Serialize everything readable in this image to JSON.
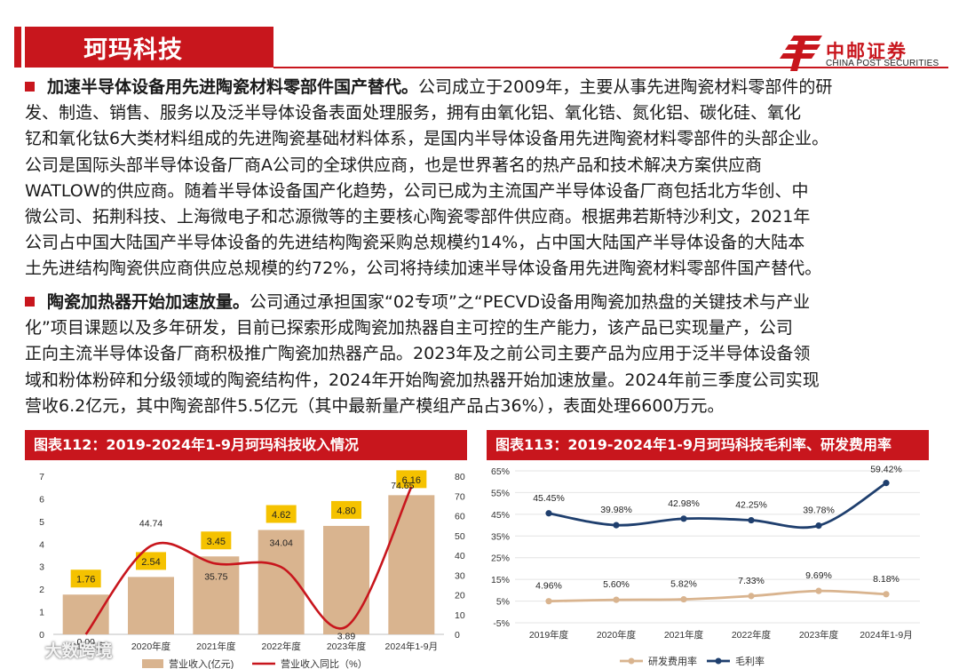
{
  "header": {
    "title": "珂玛科技",
    "logo_cn": "中邮证券",
    "logo_en": "CHINA POST SECURITIES",
    "brand_color": "#c8161d"
  },
  "sections": [
    {
      "heading": "加速半导体设备用先进陶瓷材料零部件国产替代。",
      "lines": [
        "公司成立于2009年，主要从事先进陶瓷材料零部件的研",
        "发、制造、销售、服务以及泛半导体设备表面处理服务，拥有由氧化铝、氧化锆、氮化铝、碳化硅、氧化",
        "钇和氧化钛6大类材料组成的先进陶瓷基础材料体系，是国内半导体设备用先进陶瓷材料零部件的头部企业。",
        "公司是国际头部半导体设备厂商A公司的全球供应商，也是世界著名的热产品和技术解决方案供应商",
        "WATLOW的供应商。随着半导体设备国产化趋势，公司已成为主流国产半导体设备厂商包括北方华创、中",
        "微公司、拓荆科技、上海微电子和芯源微等的主要核心陶瓷零部件供应商。根据弗若斯特沙利文，2021年",
        "公司占中国大陆国产半导体设备的先进结构陶瓷采购总规模约14%，占中国大陆国产半导体设备的大陆本",
        "土先进结构陶瓷供应商供应总规模的约72%，公司将持续加速半导体设备用先进陶瓷材料零部件国产替代。"
      ]
    },
    {
      "heading": "陶瓷加热器开始加速放量。",
      "lines": [
        "公司通过承担国家“02专项”之“PECVD设备用陶瓷加热盘的关键技术与产业",
        "化”项目课题以及多年研发，目前已探索形成陶瓷加热器自主可控的生产能力，该产品已实现量产，公司",
        "正向主流半导体设备厂商积极推广陶瓷加热器产品。2023年及之前公司主要产品为应用于泛半导体设备领",
        "域和粉体粉碎和分级领域的陶瓷结构件，2024年开始陶瓷加热器开始加速放量。2024年前三季度公司实现",
        "营收6.2亿元，其中陶瓷部件5.5亿元（其中最新量产模组产品占36%），表面处理6600万元。"
      ]
    }
  ],
  "chart_data": [
    {
      "caption": "图表112：2019-2024年1-9月珂玛科技收入情况",
      "type": "bar",
      "categories": [
        "2019年度",
        "2020年度",
        "2021年度",
        "2022年度",
        "2023年度",
        "2024年1-9月"
      ],
      "series": [
        {
          "name": "营业收入(亿元)",
          "type": "bar",
          "axis": "left",
          "values": [
            1.76,
            2.54,
            3.45,
            4.62,
            4.8,
            6.16
          ],
          "color": "#d9b48f"
        },
        {
          "name": "营业收入同比（%）",
          "type": "line",
          "axis": "right",
          "values": [
            0.0,
            44.74,
            35.75,
            34.04,
            3.89,
            74.65
          ],
          "color": "#c8161d"
        }
      ],
      "ylim_left": [
        0,
        7
      ],
      "left_ticks": [
        "0",
        "1",
        "2",
        "3",
        "4",
        "5",
        "6",
        "7"
      ],
      "ylim_right": [
        0,
        80
      ],
      "right_ticks": [
        "0",
        "10",
        "20",
        "30",
        "40",
        "50",
        "60",
        "70",
        "80"
      ],
      "bar_label_bg": "#f5c200",
      "legend_position": "bottom"
    },
    {
      "caption": "图表113：2019-2024年1-9月珂玛科技毛利率、研发费用率",
      "type": "line",
      "categories": [
        "2019年度",
        "2020年度",
        "2021年度",
        "2022年度",
        "2023年度",
        "2024年1-9月"
      ],
      "series": [
        {
          "name": "研发费用率",
          "values": [
            4.96,
            5.6,
            5.82,
            7.33,
            9.69,
            8.18
          ],
          "labels": [
            "4.96%",
            "5.60%",
            "5.82%",
            "7.33%",
            "9.69%",
            "8.18%"
          ],
          "color": "#d9b48f"
        },
        {
          "name": "毛利率",
          "values": [
            45.45,
            39.98,
            42.98,
            42.25,
            39.78,
            59.42
          ],
          "labels": [
            "45.45%",
            "39.98%",
            "42.98%",
            "42.25%",
            "39.78%",
            "59.42%"
          ],
          "color": "#1f3f6e"
        }
      ],
      "ylim": [
        -5,
        65
      ],
      "y_ticks": [
        "-5%",
        "5%",
        "15%",
        "25%",
        "35%",
        "45%",
        "55%",
        "65%"
      ],
      "grid": true,
      "legend_position": "bottom"
    }
  ],
  "watermark": {
    "text": "大数跨境"
  }
}
